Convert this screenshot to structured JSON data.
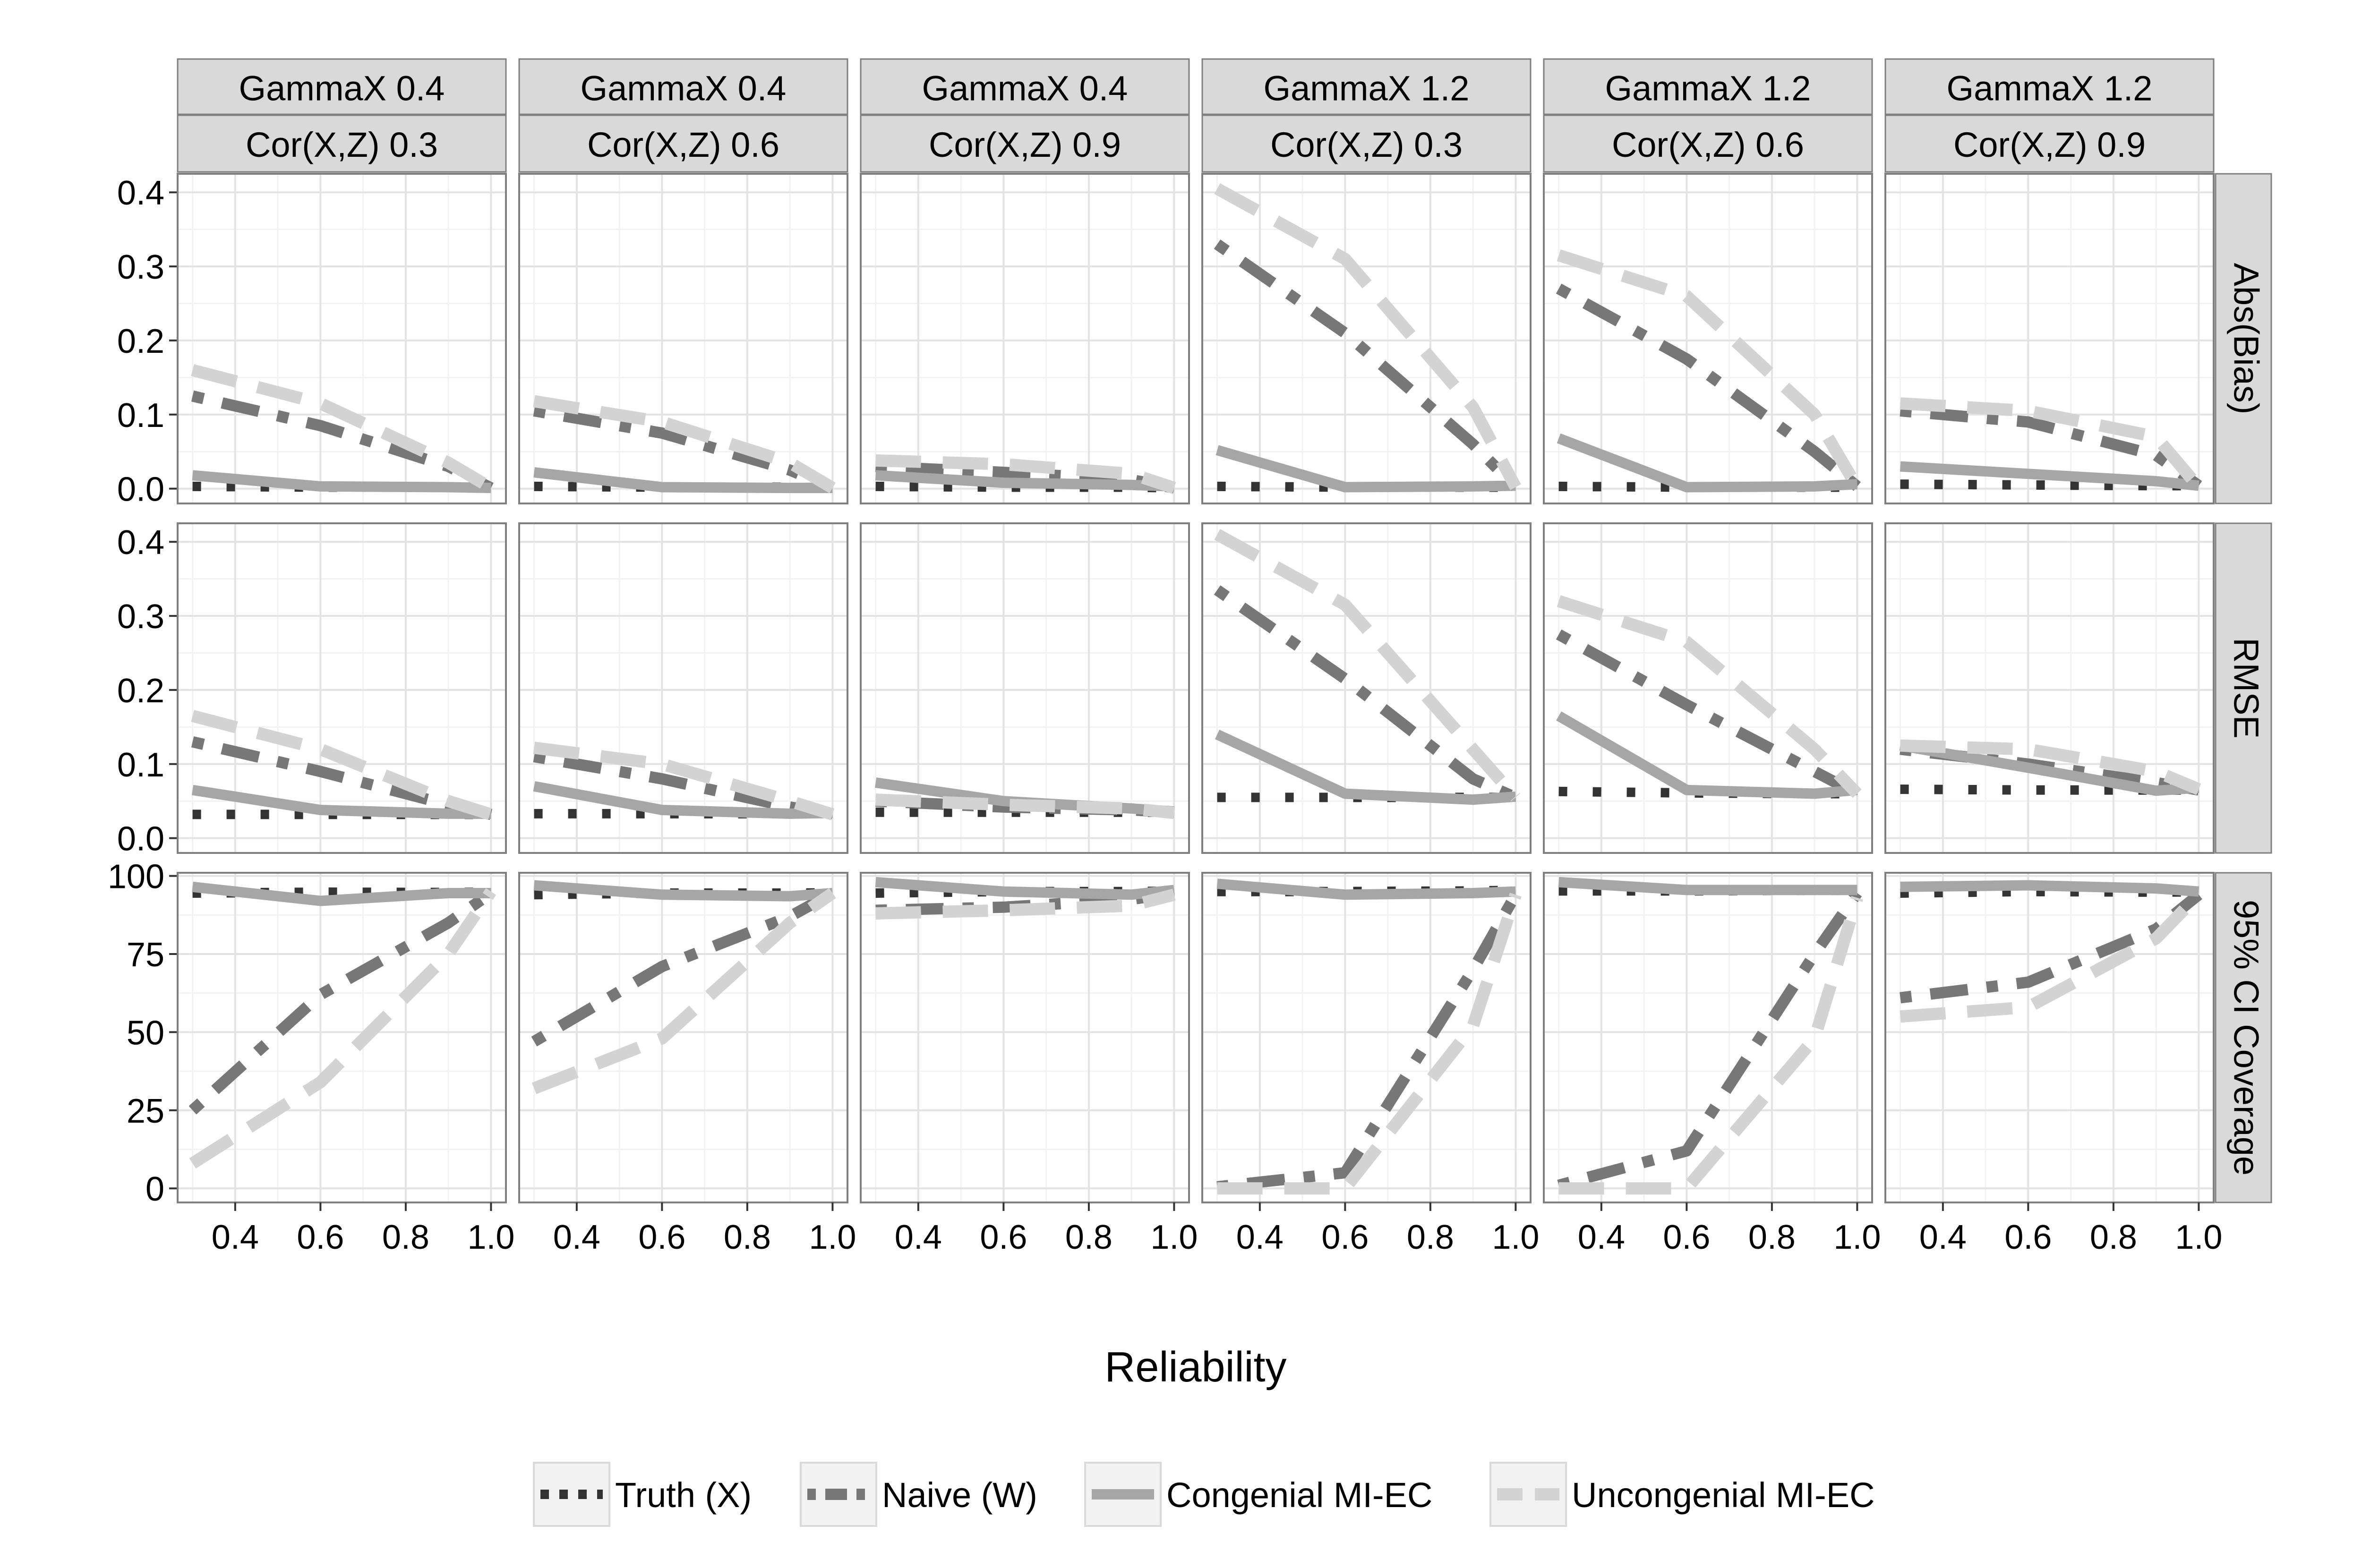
{
  "chart_data": {
    "type": "line",
    "facet_columns": [
      {
        "top": "GammaX 0.4",
        "bottom": "Cor(X,Z) 0.3"
      },
      {
        "top": "GammaX 0.4",
        "bottom": "Cor(X,Z) 0.6"
      },
      {
        "top": "GammaX 0.4",
        "bottom": "Cor(X,Z) 0.9"
      },
      {
        "top": "GammaX 1.2",
        "bottom": "Cor(X,Z) 0.3"
      },
      {
        "top": "GammaX 1.2",
        "bottom": "Cor(X,Z) 0.6"
      },
      {
        "top": "GammaX 1.2",
        "bottom": "Cor(X,Z) 0.9"
      }
    ],
    "facet_rows": [
      {
        "label": "Abs(Bias)",
        "ylim": [
          -0.02,
          0.425
        ],
        "y_ticks": [
          0.0,
          0.1,
          0.2,
          0.3,
          0.4
        ],
        "y_tick_labels": [
          "0.0",
          "0.1",
          "0.2",
          "0.3",
          "0.4"
        ]
      },
      {
        "label": "RMSE",
        "ylim": [
          -0.02,
          0.425
        ],
        "y_ticks": [
          0.0,
          0.1,
          0.2,
          0.3,
          0.4
        ],
        "y_tick_labels": [
          "0.0",
          "0.1",
          "0.2",
          "0.3",
          "0.4"
        ]
      },
      {
        "label": "95% CI Coverage",
        "ylim": [
          -4.5,
          101
        ],
        "y_ticks": [
          0,
          25,
          50,
          75,
          100
        ],
        "y_tick_labels": [
          "0",
          "25",
          "50",
          "75",
          "100"
        ]
      }
    ],
    "x": [
      0.3,
      0.6,
      0.9,
      1.0
    ],
    "xlim": [
      0.265,
      1.035
    ],
    "x_ticks": [
      0.4,
      0.6,
      0.8,
      1.0
    ],
    "x_tick_labels": [
      "0.4",
      "0.6",
      "0.8",
      "1.0"
    ],
    "xlabel": "Reliability",
    "grid": true,
    "legend_position": "bottom",
    "series": [
      {
        "name": "Truth (X)",
        "color": "#333333",
        "dash": "dotted",
        "values": [
          [
            [
              0.003,
              0.002,
              0.002,
              0.001
            ],
            [
              0.003,
              0.002,
              0.002,
              0.001
            ],
            [
              0.003,
              0.002,
              0.002,
              0.001
            ],
            [
              0.003,
              0.002,
              0.002,
              0.002
            ],
            [
              0.003,
              0.002,
              0.002,
              0.002
            ],
            [
              0.006,
              0.005,
              0.004,
              0.004
            ]
          ],
          [
            [
              0.032,
              0.032,
              0.032,
              0.032
            ],
            [
              0.033,
              0.033,
              0.033,
              0.033
            ],
            [
              0.035,
              0.035,
              0.035,
              0.035
            ],
            [
              0.055,
              0.055,
              0.055,
              0.055
            ],
            [
              0.063,
              0.061,
              0.06,
              0.06
            ],
            [
              0.066,
              0.065,
              0.065,
              0.065
            ]
          ],
          [
            [
              94.5,
              94.8,
              94.7,
              94.8
            ],
            [
              94.0,
              94.5,
              94.5,
              94.6
            ],
            [
              94.5,
              95.0,
              95.0,
              95.1
            ],
            [
              95.0,
              95.0,
              95.2,
              95.4
            ],
            [
              95.2,
              95.2,
              95.4,
              95.4
            ],
            [
              94.5,
              95.0,
              94.8,
              94.9
            ]
          ]
        ]
      },
      {
        "name": "Naive (W)",
        "color": "#777777",
        "dash": "dotdash",
        "values": [
          [
            [
              0.125,
              0.085,
              0.03,
              0.001
            ],
            [
              0.105,
              0.075,
              0.025,
              0.001
            ],
            [
              0.03,
              0.022,
              0.012,
              0.001
            ],
            [
              0.33,
              0.21,
              0.06,
              0.002
            ],
            [
              0.27,
              0.175,
              0.05,
              0.003
            ],
            [
              0.105,
              0.09,
              0.045,
              0.004
            ]
          ],
          [
            [
              0.13,
              0.09,
              0.045,
              0.032
            ],
            [
              0.11,
              0.08,
              0.042,
              0.033
            ],
            [
              0.05,
              0.042,
              0.038,
              0.035
            ],
            [
              0.335,
              0.215,
              0.08,
              0.055
            ],
            [
              0.275,
              0.18,
              0.09,
              0.06
            ],
            [
              0.12,
              0.1,
              0.075,
              0.065
            ]
          ],
          [
            [
              25.0,
              62.0,
              85.0,
              94.5
            ],
            [
              47.0,
              71.0,
              87.0,
              94.5
            ],
            [
              89.0,
              90.0,
              92.5,
              94.5
            ],
            [
              0.5,
              5.0,
              70.0,
              94.0
            ],
            [
              1.0,
              12.0,
              75.0,
              94.5
            ],
            [
              61.0,
              66.0,
              83.0,
              94.0
            ]
          ]
        ]
      },
      {
        "name": "Congenial MI-EC",
        "color": "#a6a6a6",
        "dash": "solid",
        "values": [
          [
            [
              0.018,
              0.003,
              0.002,
              0.001
            ],
            [
              0.022,
              0.002,
              0.001,
              0.001
            ],
            [
              0.018,
              0.008,
              0.005,
              0.003
            ],
            [
              0.052,
              0.002,
              0.003,
              0.004
            ],
            [
              0.068,
              0.002,
              0.003,
              0.006
            ],
            [
              0.03,
              0.02,
              0.01,
              0.004
            ]
          ],
          [
            [
              0.065,
              0.038,
              0.033,
              0.033
            ],
            [
              0.07,
              0.038,
              0.033,
              0.034
            ],
            [
              0.075,
              0.05,
              0.04,
              0.036
            ],
            [
              0.14,
              0.06,
              0.052,
              0.056
            ],
            [
              0.165,
              0.065,
              0.06,
              0.065
            ],
            [
              0.125,
              0.095,
              0.064,
              0.068
            ]
          ],
          [
            [
              96.5,
              92.0,
              94.5,
              94.5
            ],
            [
              97.0,
              94.0,
              93.5,
              94.5
            ],
            [
              98.0,
              95.0,
              94.0,
              95.5
            ],
            [
              97.5,
              94.0,
              94.5,
              95.0
            ],
            [
              98.0,
              95.5,
              95.5,
              95.5
            ],
            [
              96.5,
              97.0,
              96.0,
              95.0
            ]
          ]
        ]
      },
      {
        "name": "Uncongenial MI-EC",
        "color": "#d3d3d3",
        "dash": "dashed",
        "values": [
          [
            [
              0.16,
              0.115,
              0.035,
              0.001
            ],
            [
              0.118,
              0.09,
              0.035,
              0.001
            ],
            [
              0.038,
              0.033,
              0.02,
              0.001
            ],
            [
              0.405,
              0.31,
              0.11,
              0.002
            ],
            [
              0.315,
              0.26,
              0.1,
              0.002
            ],
            [
              0.115,
              0.105,
              0.07,
              0.002
            ]
          ],
          [
            [
              0.165,
              0.12,
              0.05,
              0.032
            ],
            [
              0.122,
              0.1,
              0.05,
              0.032
            ],
            [
              0.052,
              0.045,
              0.04,
              0.034
            ],
            [
              0.41,
              0.315,
              0.12,
              0.055
            ],
            [
              0.32,
              0.265,
              0.12,
              0.06
            ],
            [
              0.125,
              0.12,
              0.09,
              0.066
            ]
          ],
          [
            [
              8.0,
              34.0,
              75.0,
              95.0
            ],
            [
              32.0,
              48.0,
              85.0,
              94.5
            ],
            [
              88.0,
              89.0,
              90.5,
              94.0
            ],
            [
              0.0,
              0.0,
              52.0,
              94.0
            ],
            [
              0.0,
              0.0,
              48.0,
              93.0
            ],
            [
              55.0,
              58.0,
              80.0,
              94.0
            ]
          ]
        ]
      }
    ]
  }
}
